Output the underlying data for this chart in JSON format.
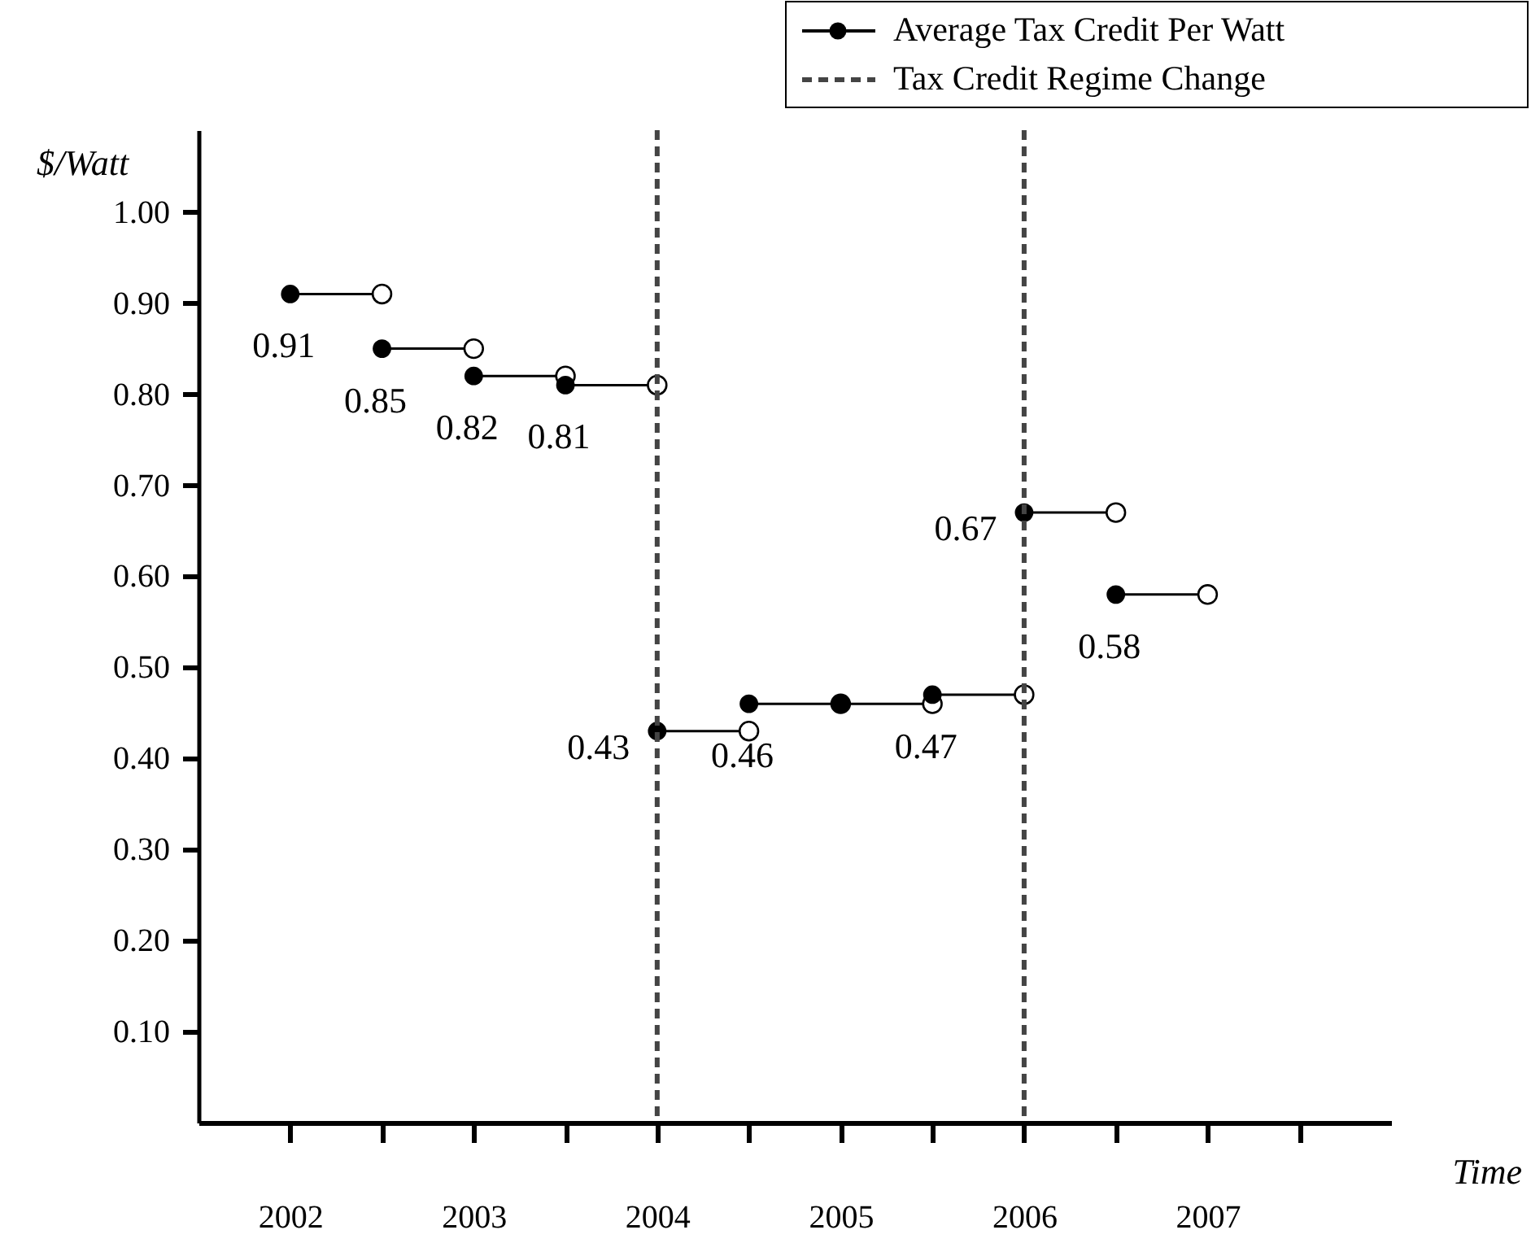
{
  "chart_data": {
    "type": "line",
    "xlabel": "Time",
    "ylabel": "$/Watt",
    "series": [
      {
        "name": "Average Tax Credit Per Watt",
        "color": "#000000",
        "x": [
          2002,
          2002.5
        ],
        "values": [
          0.91,
          0.91
        ],
        "value_labels": [
          "0.91",
          null
        ]
      },
      {
        "color": "#000000",
        "x": [
          2002.5,
          2003
        ],
        "values": [
          0.85,
          0.85
        ],
        "value_labels": [
          "0.85",
          null
        ]
      },
      {
        "color": "#000000",
        "x": [
          2003,
          2003.5
        ],
        "values": [
          0.82,
          0.82
        ],
        "value_labels": [
          "0.82",
          null
        ]
      },
      {
        "color": "#000000",
        "x": [
          2003.5,
          2004
        ],
        "values": [
          0.81,
          0.81
        ],
        "value_labels": [
          "0.81",
          null
        ]
      },
      {
        "color": "#000000",
        "x": [
          2004,
          2004.5
        ],
        "values": [
          0.43,
          0.43
        ],
        "value_labels": [
          "0.43",
          null
        ]
      },
      {
        "color": "#000000",
        "x": [
          2004.5,
          2005
        ],
        "values": [
          0.46,
          0.46
        ],
        "value_labels": [
          "0.46",
          null
        ]
      },
      {
        "color": "#000000",
        "x": [
          2005,
          2005.5
        ],
        "values": [
          0.46,
          0.46
        ],
        "value_labels": [
          null,
          null
        ]
      },
      {
        "color": "#000000",
        "x": [
          2005.5,
          2006
        ],
        "values": [
          0.47,
          0.47
        ],
        "value_labels": [
          "0.47",
          null
        ]
      },
      {
        "color": "#000000",
        "x": [
          2006,
          2006.5
        ],
        "values": [
          0.67,
          0.67
        ],
        "value_labels": [
          "0.67",
          null
        ]
      },
      {
        "color": "#000000",
        "x": [
          2006.5,
          2007
        ],
        "values": [
          0.58,
          0.58
        ],
        "value_labels": [
          "0.58",
          null
        ]
      }
    ],
    "ref_lines": [
      {
        "axis": "x",
        "value": 2004,
        "label": "Tax Credit Regime Change",
        "color": "#444444",
        "line_style": "dashed"
      },
      {
        "axis": "x",
        "value": 2006,
        "color": "#444444",
        "line_style": "dashed"
      }
    ],
    "xlim": [
      2001.5,
      2008
    ],
    "xticks": [
      2002,
      {
        "value": 2002.5,
        "label": null
      },
      2003,
      {
        "value": 2003.5,
        "label": null
      },
      2004,
      {
        "value": 2004.5,
        "label": null
      },
      2005,
      {
        "value": 2005.5,
        "label": null
      },
      2006,
      {
        "value": 2006.5,
        "label": null
      },
      2007,
      {
        "value": 2007.5,
        "label": null
      }
    ],
    "ylim": [
      0,
      1.09
    ],
    "yticks": [
      {
        "value": 0.1,
        "label": "0.10"
      },
      {
        "value": 0.2,
        "label": "0.20"
      },
      {
        "value": 0.3,
        "label": "0.30"
      },
      {
        "value": 0.4,
        "label": "0.40"
      },
      {
        "value": 0.5,
        "label": "0.50"
      },
      {
        "value": 0.6,
        "label": "0.60"
      },
      {
        "value": 0.7,
        "label": "0.70"
      },
      {
        "value": 0.8,
        "label": "0.80"
      },
      {
        "value": 0.9,
        "label": "0.90"
      },
      {
        "value": 1.0,
        "label": "1.00"
      }
    ],
    "grid": false,
    "legend": "top right",
    "marker": "circle",
    "line_style": "solid"
  }
}
